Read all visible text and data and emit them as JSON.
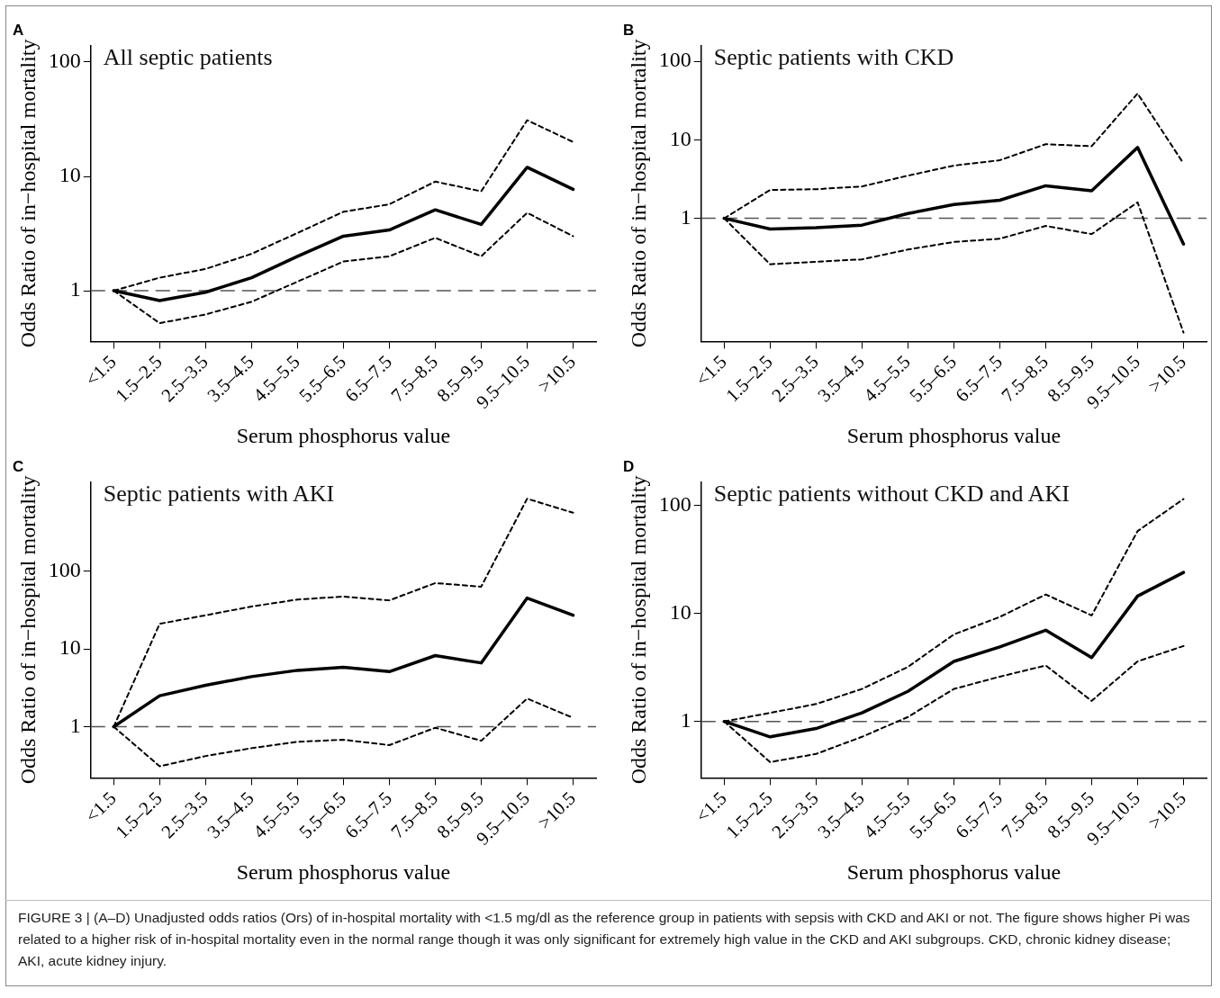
{
  "chart_data": [
    {
      "type": "line",
      "title": "A",
      "xlabel": "Serum phosphorus value",
      "ylabel": "Odds Ratio of in−hospital mortality",
      "annotations": [
        "All septic patients"
      ],
      "categories": [
        "<1.5",
        "1.5–2.5",
        "2.5–3.5",
        "3.5–4.5",
        "4.5–5.5",
        "5.5–6.5",
        "6.5–7.5",
        "7.5–8.5",
        "8.5–9.5",
        "9.5–10.5",
        ">10.5"
      ],
      "series": [
        {
          "color": "#000000",
          "line_style": "dashed",
          "values": [
            1,
            0.52,
            0.62,
            0.8,
            1.2,
            1.8,
            2.0,
            2.9,
            2.0,
            4.8,
            3.0
          ]
        },
        {
          "color": "#000000",
          "line_style": "dashed",
          "values": [
            1,
            1.3,
            1.55,
            2.1,
            3.2,
            4.9,
            5.7,
            9,
            7.4,
            31,
            20
          ]
        },
        {
          "color": "#000000",
          "values": [
            1,
            0.82,
            0.97,
            1.3,
            2,
            3,
            3.4,
            5.1,
            3.8,
            12,
            7.7
          ]
        }
      ],
      "log": "y",
      "ylim": [
        0.36,
        140
      ],
      "yticks": [
        1,
        10,
        100
      ],
      "ref_lines": [
        {
          "axis": "y",
          "value": 1,
          "color": "#555555",
          "line_style": "dashed"
        }
      ],
      "grid": false,
      "legend": false,
      "marker": "none",
      "line_style": "solid"
    },
    {
      "type": "line",
      "title": "B",
      "xlabel": "Serum phosphorus value",
      "ylabel": "Odds Ratio of in−hospital mortality",
      "annotations": [
        "Septic patients with CKD"
      ],
      "categories": [
        "<1.5",
        "1.5–2.5",
        "2.5–3.5",
        "3.5–4.5",
        "4.5–5.5",
        "5.5–6.5",
        "6.5–7.5",
        "7.5–8.5",
        "8.5–9.5",
        "9.5–10.5",
        ">10.5"
      ],
      "series": [
        {
          "color": "#000000",
          "line_style": "dashed",
          "values": [
            1,
            0.26,
            0.28,
            0.3,
            0.4,
            0.5,
            0.55,
            0.8,
            0.63,
            1.6,
            0.035
          ]
        },
        {
          "color": "#000000",
          "line_style": "dashed",
          "values": [
            1,
            2.3,
            2.35,
            2.55,
            3.5,
            4.7,
            5.5,
            8.8,
            8.3,
            39,
            5.0
          ]
        },
        {
          "color": "#000000",
          "values": [
            1,
            0.73,
            0.76,
            0.82,
            1.15,
            1.5,
            1.7,
            2.6,
            2.25,
            8.0,
            0.47
          ]
        }
      ],
      "log": "y",
      "ylim": [
        0.027,
        160
      ],
      "yticks": [
        1,
        10,
        100
      ],
      "ref_lines": [
        {
          "axis": "y",
          "value": 1,
          "color": "#555555",
          "line_style": "dashed"
        }
      ],
      "grid": false,
      "legend": false,
      "marker": "none",
      "line_style": "solid"
    },
    {
      "type": "line",
      "title": "C",
      "xlabel": "Serum phosphorus value",
      "ylabel": "Odds Ratio of in−hospital mortality",
      "annotations": [
        "Septic patients with AKI"
      ],
      "categories": [
        "<1.5",
        "1.5–2.5",
        "2.5–3.5",
        "3.5–4.5",
        "4.5–5.5",
        "5.5–6.5",
        "6.5–7.5",
        "7.5–8.5",
        "8.5–9.5",
        "9.5–10.5",
        ">10.5"
      ],
      "series": [
        {
          "color": "#000000",
          "line_style": "dashed",
          "values": [
            1,
            0.31,
            0.42,
            0.53,
            0.64,
            0.68,
            0.58,
            0.97,
            0.66,
            2.3,
            1.3
          ]
        },
        {
          "color": "#000000",
          "line_style": "dashed",
          "values": [
            1,
            21,
            27,
            35,
            43,
            47,
            42,
            70,
            63,
            850,
            560
          ]
        },
        {
          "color": "#000000",
          "values": [
            1,
            2.5,
            3.4,
            4.4,
            5.3,
            5.8,
            5.1,
            8.2,
            6.6,
            45,
            27
          ]
        }
      ],
      "log": "y",
      "ylim": [
        0.22,
        1400
      ],
      "yticks": [
        1,
        10,
        100
      ],
      "ref_lines": [
        {
          "axis": "y",
          "value": 1,
          "color": "#555555",
          "line_style": "dashed"
        }
      ],
      "grid": false,
      "legend": false,
      "marker": "none",
      "line_style": "solid"
    },
    {
      "type": "line",
      "title": "D",
      "xlabel": "Serum phosphorus value",
      "ylabel": "Odds Ratio of in−hospital mortality",
      "annotations": [
        "Septic patients without CKD and AKI",
        "FIGURE 3 | (A–D) Unadjusted odds ratios (Ors) of in-hospital mortality with <1.5 mg/dl as the reference group in patients with sepsis with CKD and AKI or not. The figure shows higher Pi was related to a higher risk of in-hospital mortality even in the normal range though it was only significant for extremely high value in the CKD and AKI subgroups. CKD, chronic kidney disease; AKI, acute kidney injury."
      ],
      "categories": [
        "<1.5",
        "1.5–2.5",
        "2.5–3.5",
        "3.5–4.5",
        "4.5–5.5",
        "5.5–6.5",
        "6.5–7.5",
        "7.5–8.5",
        "8.5–9.5",
        "9.5–10.5",
        ">10.5"
      ],
      "series": [
        {
          "color": "#000000",
          "line_style": "dashed",
          "values": [
            1,
            0.42,
            0.5,
            0.72,
            1.1,
            2.0,
            2.6,
            3.3,
            1.55,
            3.6,
            5.0
          ]
        },
        {
          "color": "#000000",
          "line_style": "dashed",
          "values": [
            1,
            1.2,
            1.45,
            2.0,
            3.2,
            6.4,
            9.3,
            15,
            9.6,
            58,
            115
          ]
        },
        {
          "color": "#000000",
          "values": [
            1,
            0.72,
            0.86,
            1.2,
            1.9,
            3.6,
            4.9,
            7,
            3.9,
            14.5,
            24
          ]
        }
      ],
      "log": "y",
      "ylim": [
        0.3,
        166
      ],
      "yticks": [
        1,
        10,
        100
      ],
      "ref_lines": [
        {
          "axis": "y",
          "value": 1,
          "color": "#555555",
          "line_style": "dashed"
        }
      ],
      "grid": false,
      "legend": false,
      "marker": "none",
      "line_style": "solid"
    }
  ]
}
